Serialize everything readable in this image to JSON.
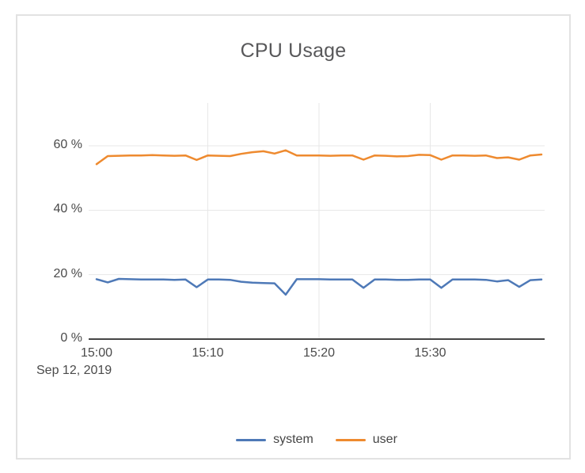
{
  "card": {
    "border_color": "#e2e2e2",
    "background": "#ffffff"
  },
  "chart_data": {
    "type": "line",
    "title": "CPU Usage",
    "x_axis": {
      "date_label": "Sep 12, 2019",
      "range_minutes": [
        0,
        40
      ],
      "tick_minutes": [
        0,
        10,
        20,
        30
      ],
      "tick_labels": [
        "15:00",
        "15:10",
        "15:20",
        "15:30"
      ]
    },
    "y_axis": {
      "unit": "%",
      "range": [
        0,
        73
      ],
      "tick_values": [
        0,
        20,
        40,
        60
      ],
      "tick_labels": [
        "0 %",
        "20 %",
        "40 %",
        "60 %"
      ]
    },
    "grid": {
      "visible": true,
      "color": "#e7e7e7",
      "axis_line_color": "#454545"
    },
    "legend": {
      "position": "bottom-center"
    },
    "x_minutes": [
      0,
      1,
      2,
      3,
      4,
      5,
      6,
      7,
      8,
      9,
      10,
      11,
      12,
      13,
      14,
      15,
      16,
      17,
      18,
      19,
      20,
      21,
      22,
      23,
      24,
      25,
      26,
      27,
      28,
      29,
      30,
      31,
      32,
      33,
      34,
      35,
      36,
      37,
      38,
      39,
      40
    ],
    "series": [
      {
        "name": "system",
        "color": "#4e79b7",
        "values": [
          18.6,
          17.6,
          18.7,
          18.6,
          18.5,
          18.5,
          18.5,
          18.4,
          18.5,
          16.1,
          18.5,
          18.5,
          18.4,
          17.8,
          17.5,
          17.4,
          17.3,
          13.8,
          18.6,
          18.6,
          18.6,
          18.5,
          18.5,
          18.5,
          15.9,
          18.5,
          18.5,
          18.4,
          18.4,
          18.5,
          18.5,
          15.9,
          18.5,
          18.5,
          18.5,
          18.4,
          17.9,
          18.3,
          16.2,
          18.3,
          18.5
        ]
      },
      {
        "name": "user",
        "color": "#ee8a2f",
        "values": [
          54.3,
          56.8,
          56.9,
          57.0,
          57.0,
          57.1,
          57.0,
          56.9,
          57.0,
          55.6,
          57.0,
          56.9,
          56.8,
          57.5,
          58.0,
          58.3,
          57.6,
          58.6,
          57.0,
          57.0,
          57.0,
          56.9,
          57.0,
          57.0,
          55.7,
          57.0,
          56.9,
          56.7,
          56.8,
          57.2,
          57.1,
          55.7,
          57.0,
          57.0,
          56.9,
          57.0,
          56.2,
          56.4,
          55.7,
          57.0,
          57.3
        ]
      }
    ]
  }
}
